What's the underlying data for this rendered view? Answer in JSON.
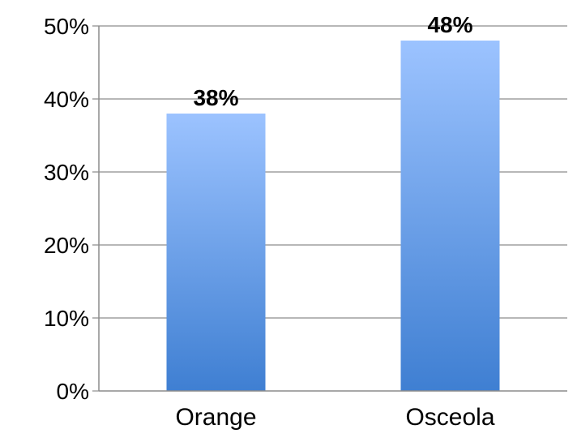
{
  "chart_data": {
    "type": "bar",
    "categories": [
      "Orange",
      "Osceola"
    ],
    "values": [
      38,
      48
    ],
    "data_labels": [
      "38%",
      "48%"
    ],
    "y_ticks": [
      "0%",
      "10%",
      "20%",
      "30%",
      "40%",
      "50%"
    ],
    "ylim": [
      0,
      50
    ],
    "y_step": 10,
    "grid": true,
    "legend": "none",
    "colors": {
      "bar_top": "#9cc3ff",
      "bar_bottom": "#3f7fd2",
      "gridline": "#8c8c8c",
      "axis": "#8c8c8c",
      "text": "#000000"
    }
  }
}
